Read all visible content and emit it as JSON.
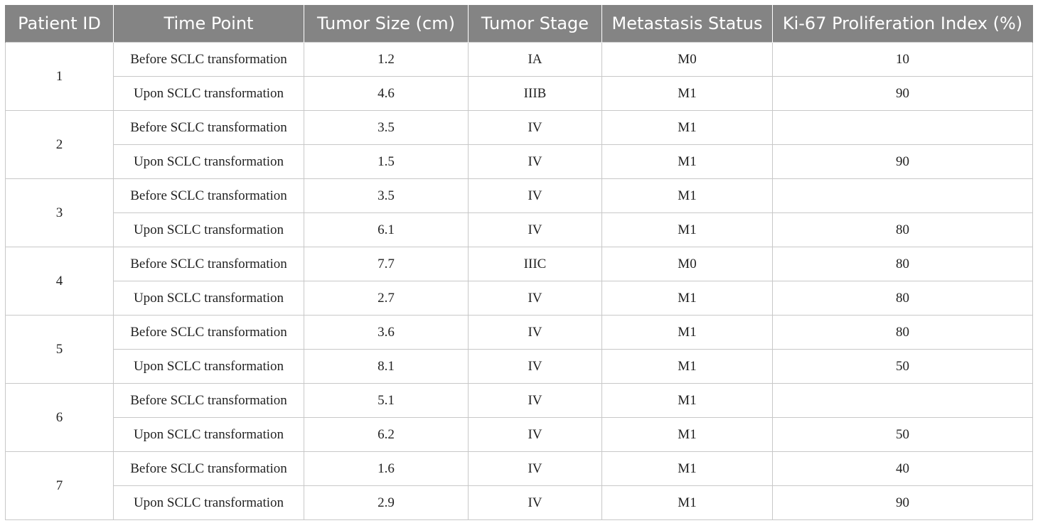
{
  "table": {
    "headers": [
      "Patient ID",
      "Time Point",
      "Tumor Size (cm)",
      "Tumor Stage",
      "Metastasis Status",
      "Ki-67 Proliferation Index (%)"
    ],
    "patients": [
      {
        "id": "1",
        "rows": [
          {
            "time_point": "Before SCLC transformation",
            "tumor_size": "1.2",
            "tumor_stage": "IA",
            "metastasis": "M0",
            "ki67": "10"
          },
          {
            "time_point": "Upon SCLC transformation",
            "tumor_size": "4.6",
            "tumor_stage": "IIIB",
            "metastasis": "M1",
            "ki67": "90"
          }
        ]
      },
      {
        "id": "2",
        "rows": [
          {
            "time_point": "Before SCLC transformation",
            "tumor_size": "3.5",
            "tumor_stage": "IV",
            "metastasis": "M1",
            "ki67": ""
          },
          {
            "time_point": "Upon SCLC transformation",
            "tumor_size": "1.5",
            "tumor_stage": "IV",
            "metastasis": "M1",
            "ki67": "90"
          }
        ]
      },
      {
        "id": "3",
        "rows": [
          {
            "time_point": "Before SCLC transformation",
            "tumor_size": "3.5",
            "tumor_stage": "IV",
            "metastasis": "M1",
            "ki67": ""
          },
          {
            "time_point": "Upon SCLC transformation",
            "tumor_size": "6.1",
            "tumor_stage": "IV",
            "metastasis": "M1",
            "ki67": "80"
          }
        ]
      },
      {
        "id": "4",
        "rows": [
          {
            "time_point": "Before SCLC transformation",
            "tumor_size": "7.7",
            "tumor_stage": "IIIC",
            "metastasis": "M0",
            "ki67": "80"
          },
          {
            "time_point": "Upon SCLC transformation",
            "tumor_size": "2.7",
            "tumor_stage": "IV",
            "metastasis": "M1",
            "ki67": "80"
          }
        ]
      },
      {
        "id": "5",
        "rows": [
          {
            "time_point": "Before SCLC transformation",
            "tumor_size": "3.6",
            "tumor_stage": "IV",
            "metastasis": "M1",
            "ki67": "80"
          },
          {
            "time_point": "Upon SCLC transformation",
            "tumor_size": "8.1",
            "tumor_stage": "IV",
            "metastasis": "M1",
            "ki67": "50"
          }
        ]
      },
      {
        "id": "6",
        "rows": [
          {
            "time_point": "Before SCLC transformation",
            "tumor_size": "5.1",
            "tumor_stage": "IV",
            "metastasis": "M1",
            "ki67": ""
          },
          {
            "time_point": "Upon SCLC transformation",
            "tumor_size": "6.2",
            "tumor_stage": "IV",
            "metastasis": "M1",
            "ki67": "50"
          }
        ]
      },
      {
        "id": "7",
        "rows": [
          {
            "time_point": "Before SCLC transformation",
            "tumor_size": "1.6",
            "tumor_stage": "IV",
            "metastasis": "M1",
            "ki67": "40"
          },
          {
            "time_point": "Upon SCLC transformation",
            "tumor_size": "2.9",
            "tumor_stage": "IV",
            "metastasis": "M1",
            "ki67": "90"
          }
        ]
      }
    ]
  },
  "colors": {
    "header_background": "#848484",
    "header_text": "#ffffff",
    "grid_lines": "#c8c8c8",
    "body_text": "#222222"
  }
}
